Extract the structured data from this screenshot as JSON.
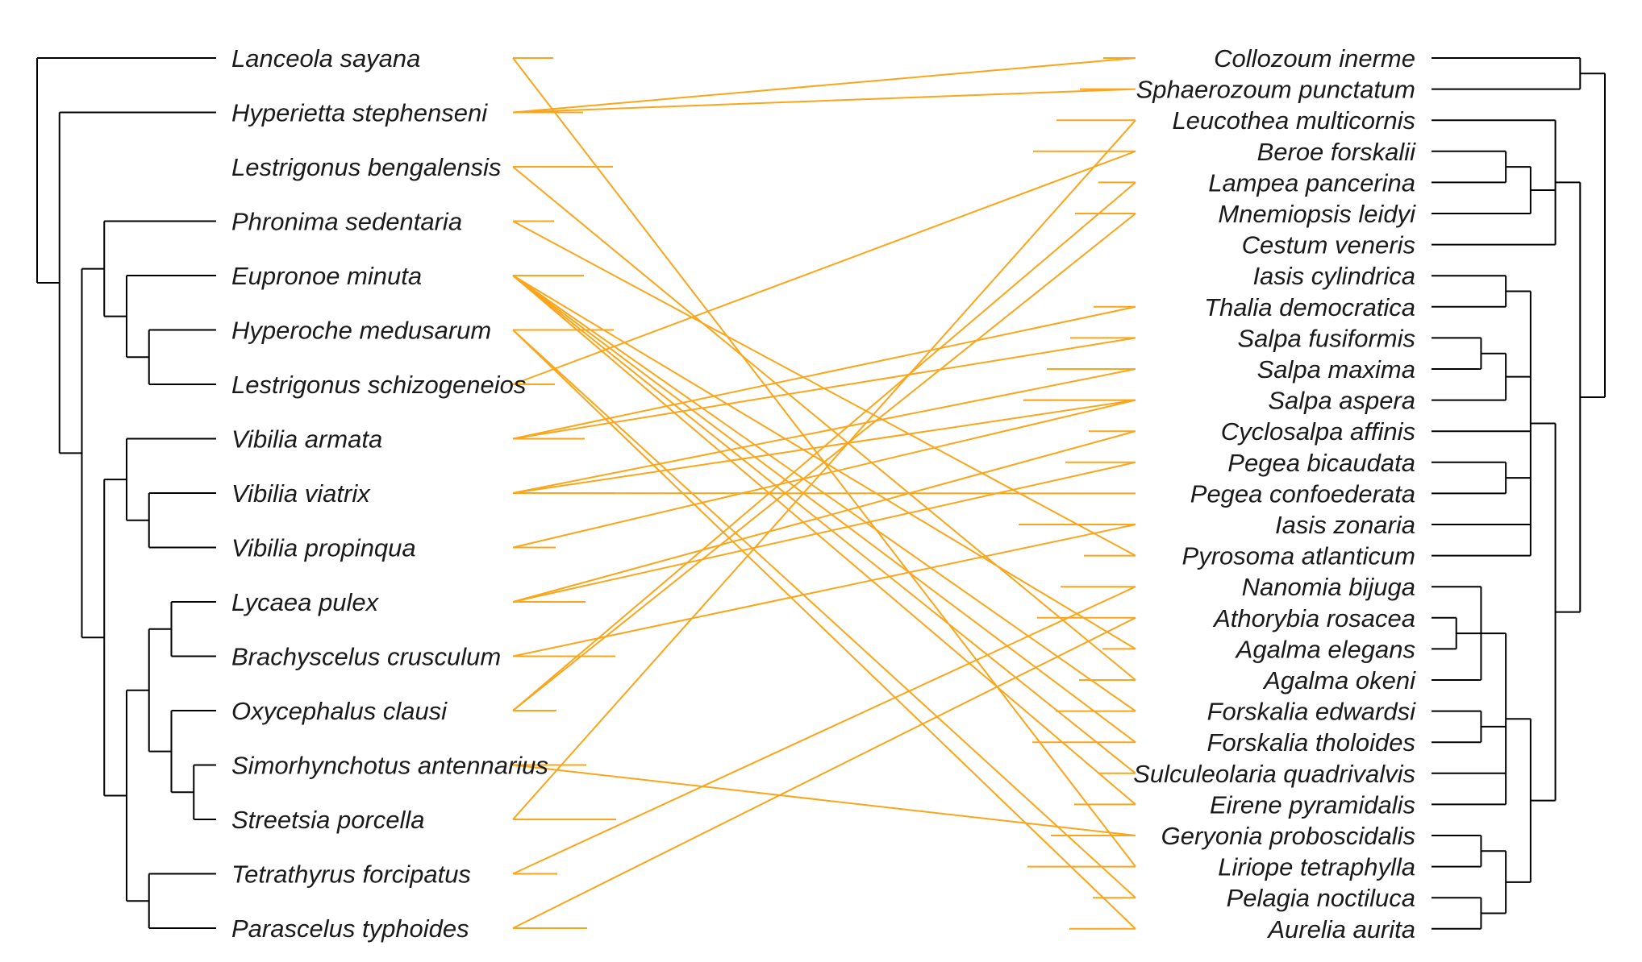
{
  "colors": {
    "tree": "#000000",
    "link": "#FBA51A",
    "text": "#1a1a1a"
  },
  "left_tree": {
    "tips": [
      "Lanceola sayana",
      "Hyperietta stephenseni",
      "Lestrigonus bengalensis",
      "Phronima sedentaria",
      "Eupronoe minuta",
      "Hyperoche medusarum",
      "Lestrigonus schizogeneios",
      "Vibilia armata",
      "Vibilia viatrix",
      "Vibilia propinqua",
      "Lycaea pulex",
      "Brachyscelus crusculum",
      "Oxycephalus clausi",
      "Simorhynchotus antennarius",
      "Streetsia porcella",
      "Tetrathyrus forcipatus",
      "Parascelus typhoides"
    ]
  },
  "right_tree": {
    "tips": [
      "Collozoum inerme",
      "Sphaerozoum punctatum",
      "Leucothea multicornis",
      "Beroe forskalii",
      "Lampea pancerina",
      "Mnemiopsis leidyi",
      "Cestum veneris",
      "Iasis cylindrica",
      "Thalia democratica",
      "Salpa fusiformis",
      "Salpa maxima",
      "Salpa aspera",
      "Cyclosalpa affinis",
      "Pegea bicaudata",
      "Pegea confoederata",
      "Iasis zonaria",
      "Pyrosoma atlanticum",
      "Nanomia bijuga",
      "Athorybia rosacea",
      "Agalma elegans",
      "Agalma okeni",
      "Forskalia edwardsi",
      "Forskalia tholoides",
      "Sulculeolaria quadrivalvis",
      "Eirene pyramidalis",
      "Geryonia proboscidalis",
      "Liriope tetraphylla",
      "Pelagia noctiluca",
      "Aurelia aurita"
    ]
  },
  "associations": [
    [
      "Lanceola sayana",
      "Liriope tetraphylla"
    ],
    [
      "Hyperietta stephenseni",
      "Collozoum inerme"
    ],
    [
      "Hyperietta stephenseni",
      "Sphaerozoum punctatum"
    ],
    [
      "Lestrigonus bengalensis",
      "Agalma okeni"
    ],
    [
      "Phronima sedentaria",
      "Pyrosoma atlanticum"
    ],
    [
      "Eupronoe minuta",
      "Forskalia edwardsi"
    ],
    [
      "Eupronoe minuta",
      "Forskalia tholoides"
    ],
    [
      "Eupronoe minuta",
      "Sulculeolaria quadrivalvis"
    ],
    [
      "Eupronoe minuta",
      "Eirene pyramidalis"
    ],
    [
      "Eupronoe minuta",
      "Agalma elegans"
    ],
    [
      "Hyperoche medusarum",
      "Pelagia noctiluca"
    ],
    [
      "Hyperoche medusarum",
      "Aurelia aurita"
    ],
    [
      "Lestrigonus schizogeneios",
      "Beroe forskalii"
    ],
    [
      "Vibilia armata",
      "Salpa fusiformis"
    ],
    [
      "Vibilia armata",
      "Thalia democratica"
    ],
    [
      "Vibilia viatrix",
      "Salpa maxima"
    ],
    [
      "Vibilia viatrix",
      "Pegea confoederata"
    ],
    [
      "Vibilia viatrix",
      "Salpa aspera"
    ],
    [
      "Vibilia propinqua",
      "Salpa aspera"
    ],
    [
      "Lycaea pulex",
      "Cyclosalpa affinis"
    ],
    [
      "Lycaea pulex",
      "Pegea bicaudata"
    ],
    [
      "Brachyscelus crusculum",
      "Iasis zonaria"
    ],
    [
      "Oxycephalus clausi",
      "Lampea pancerina"
    ],
    [
      "Oxycephalus clausi",
      "Mnemiopsis leidyi"
    ],
    [
      "Simorhynchotus antennarius",
      "Geryonia proboscidalis"
    ],
    [
      "Streetsia porcella",
      "Leucothea multicornis"
    ],
    [
      "Tetrathyrus forcipatus",
      "Nanomia bijuga"
    ],
    [
      "Parascelus typhoides",
      "Athorybia rosacea"
    ]
  ]
}
